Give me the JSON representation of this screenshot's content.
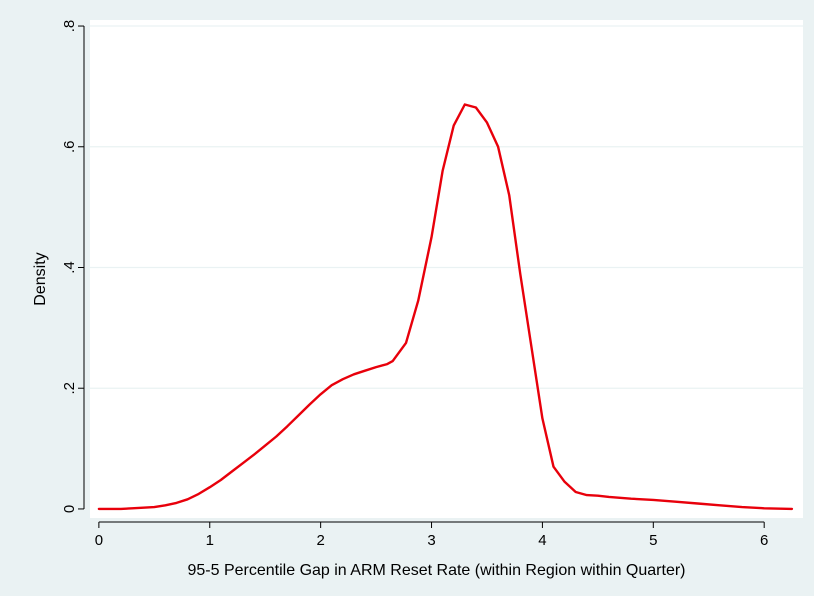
{
  "colors": {
    "outer_background": "#eaf2f3",
    "plot_background": "#ffffff",
    "grid": "#eaf2f3",
    "axis": "#000000",
    "series": "#e8000b"
  },
  "chart_data": {
    "type": "line",
    "title": "",
    "xlabel": "95-5 Percentile Gap in ARM Reset Rate (within Region within Quarter)",
    "ylabel": "Density",
    "xlim": [
      -0.08,
      6.35
    ],
    "ylim": [
      -0.015,
      0.81
    ],
    "x_ticks": [
      0,
      1,
      2,
      3,
      4,
      5,
      6
    ],
    "x_tick_labels": [
      "0",
      "1",
      "2",
      "3",
      "4",
      "5",
      "6"
    ],
    "y_ticks": [
      0,
      0.2,
      0.4,
      0.6,
      0.8
    ],
    "y_tick_labels": [
      "0",
      ".2",
      ".4",
      ".6",
      ".8"
    ],
    "grid": "horizontal",
    "legend": "none",
    "series": [
      {
        "x": [
          0,
          0.1,
          0.2,
          0.3,
          0.4,
          0.5,
          0.6,
          0.7,
          0.8,
          0.9,
          1.0,
          1.1,
          1.2,
          1.3,
          1.4,
          1.5,
          1.6,
          1.7,
          1.8,
          1.9,
          2.0,
          2.1,
          2.2,
          2.3,
          2.4,
          2.5,
          2.6,
          2.65,
          2.77,
          2.88,
          3.0,
          3.1,
          3.2,
          3.3,
          3.4,
          3.5,
          3.6,
          3.7,
          3.8,
          3.9,
          4.0,
          4.1,
          4.2,
          4.3,
          4.4,
          4.5,
          4.6,
          4.8,
          5.0,
          5.2,
          5.4,
          5.6,
          5.8,
          6.0,
          6.25
        ],
        "y": [
          0.0,
          0.0,
          0.0,
          0.001,
          0.002,
          0.003,
          0.006,
          0.01,
          0.016,
          0.025,
          0.036,
          0.048,
          0.062,
          0.076,
          0.09,
          0.105,
          0.12,
          0.137,
          0.155,
          0.173,
          0.19,
          0.205,
          0.215,
          0.223,
          0.229,
          0.235,
          0.24,
          0.245,
          0.275,
          0.345,
          0.45,
          0.56,
          0.635,
          0.67,
          0.665,
          0.64,
          0.6,
          0.52,
          0.39,
          0.27,
          0.15,
          0.07,
          0.045,
          0.028,
          0.023,
          0.022,
          0.02,
          0.017,
          0.015,
          0.012,
          0.009,
          0.006,
          0.003,
          0.001,
          0.0
        ]
      }
    ]
  }
}
